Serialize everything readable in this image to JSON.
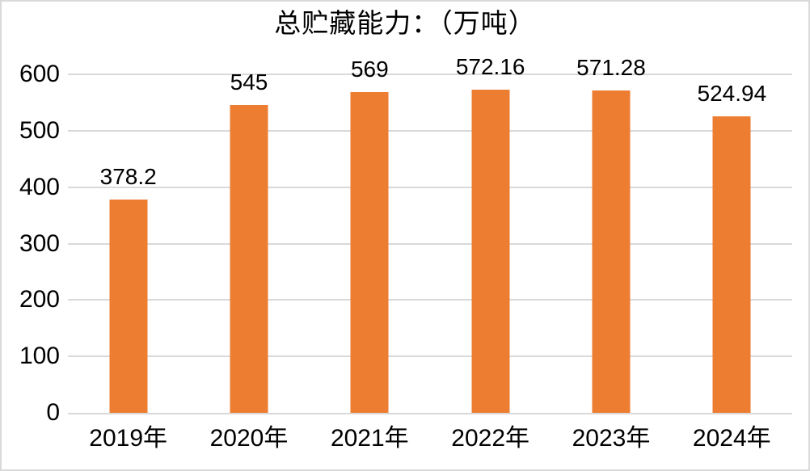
{
  "chart_data": {
    "type": "bar",
    "title": "总贮藏能力：（万吨）",
    "categories": [
      "2019年",
      "2020年",
      "2021年",
      "2022年",
      "2023年",
      "2024年"
    ],
    "values": [
      378.2,
      545,
      569,
      572.16,
      571.28,
      524.94
    ],
    "data_labels": [
      "378.2",
      "545",
      "569",
      "572.16",
      "571.28",
      "524.94"
    ],
    "xlabel": "",
    "ylabel": "",
    "ylim": [
      0,
      600
    ],
    "yticks": [
      0,
      100,
      200,
      300,
      400,
      500,
      600
    ],
    "grid": true,
    "legend": "none",
    "colors": {
      "bar": "#ED7D31",
      "gridline": "#D9D9D9",
      "axis_line": "#D9D9D9",
      "text": "#000000",
      "background": "#FFFFFF",
      "border": "#D9D9D9"
    }
  }
}
